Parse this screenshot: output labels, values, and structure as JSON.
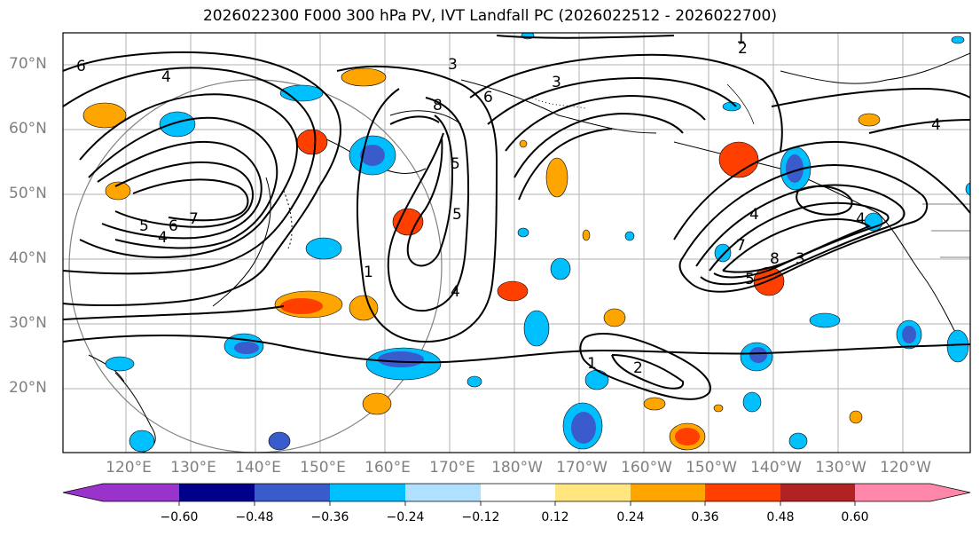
{
  "title": "2026022300 F000 300 hPa PV, IVT Landfall PC (2026022512 - 2026022700)",
  "lat_labels": [
    "70°N",
    "60°N",
    "50°N",
    "40°N",
    "30°N",
    "20°N"
  ],
  "lon_labels": [
    "120°E",
    "130°E",
    "140°E",
    "150°E",
    "160°E",
    "170°E",
    "180°W",
    "170°W",
    "160°W",
    "150°W",
    "140°W",
    "130°W",
    "120°W"
  ],
  "contour_labels": [
    "1",
    "2",
    "4",
    "5",
    "6",
    "7",
    "8",
    "3"
  ],
  "colorbar": {
    "ticks": [
      "−0.60",
      "−0.48",
      "−0.36",
      "−0.24",
      "−0.12",
      "0.12",
      "0.24",
      "0.36",
      "0.48",
      "0.60"
    ],
    "colors": [
      "#9933cc",
      "#00008b",
      "#3a5bcc",
      "#00bfff",
      "#b0e0ff",
      "#ffffff",
      "#ffe680",
      "#ffa500",
      "#ff3f00",
      "#b22222",
      "#ff88aa"
    ]
  }
}
